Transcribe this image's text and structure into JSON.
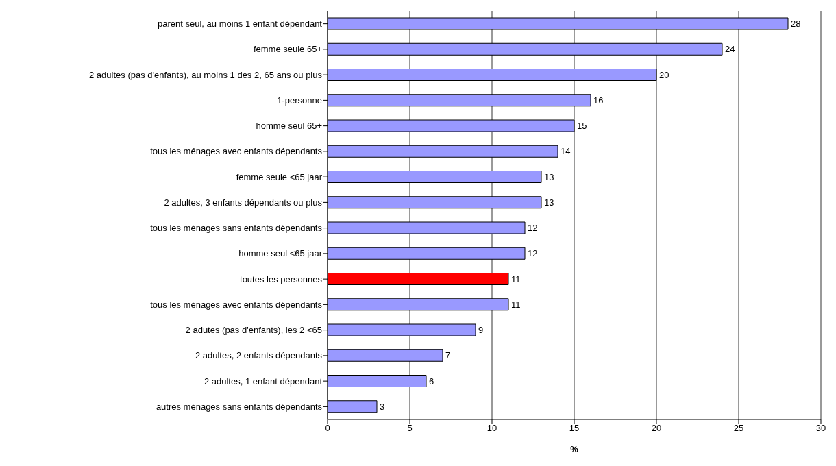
{
  "chart_data": {
    "type": "bar",
    "orientation": "horizontal",
    "xlabel": "%",
    "categories": [
      "parent seul, au moins 1 enfant dépendant",
      "femme seule 65+",
      "2 adultes (pas d'enfants), au moins 1 des 2,  65 ans ou plus",
      "1-personne",
      "homme seul 65+",
      "tous les ménages avec enfants dépendants",
      "femme seule <65 jaar",
      "2 adultes, 3 enfants dépendants ou plus",
      "tous les ménages sans enfants dépendants",
      "homme seul <65 jaar",
      "toutes les personnes",
      "tous les ménages avec enfants dépendants",
      "2 adutes (pas d'enfants), les 2 <65",
      "2 adultes, 2 enfants dépendants",
      "2 adultes, 1 enfant dépendant",
      "autres ménages sans enfants dépendants"
    ],
    "values": [
      28,
      24,
      20,
      16,
      15,
      14,
      13,
      13,
      12,
      12,
      11,
      11,
      9,
      7,
      6,
      3
    ],
    "colors": [
      "#9999ff",
      "#9999ff",
      "#9999ff",
      "#9999ff",
      "#9999ff",
      "#9999ff",
      "#9999ff",
      "#9999ff",
      "#9999ff",
      "#9999ff",
      "#ff0000",
      "#9999ff",
      "#9999ff",
      "#9999ff",
      "#9999ff",
      "#9999ff"
    ],
    "xlim": [
      0,
      30
    ],
    "xticks": [
      0,
      5,
      10,
      15,
      20,
      25,
      30
    ],
    "grid": "x",
    "data_labels": true
  }
}
